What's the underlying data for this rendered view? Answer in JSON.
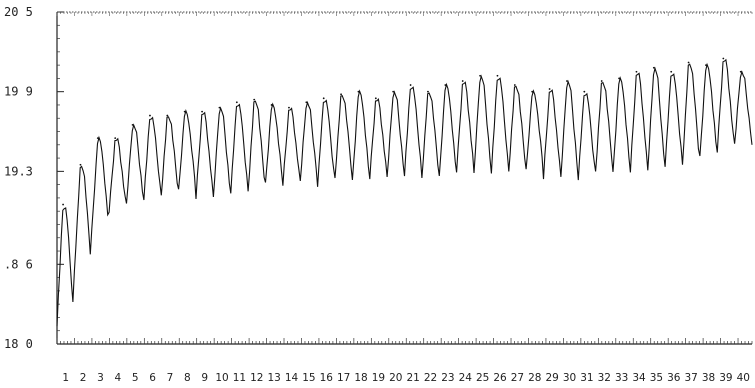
{
  "chart_data": {
    "type": "line",
    "title": "",
    "xlabel": "",
    "ylabel": "",
    "ylim": [
      18.0,
      20.5
    ],
    "xlim": [
      0,
      40
    ],
    "grid": false,
    "y_tick_labels": [
      "20 5",
      "19 9",
      "19.3",
      ".8 6",
      "18 0"
    ],
    "y_tick_values": [
      20.5,
      19.9,
      19.3,
      18.6,
      18.0
    ],
    "x_tick_labels": [
      "1",
      "2",
      "3",
      "4",
      "5",
      "6",
      "7",
      "8",
      "9",
      "10",
      "11",
      "12",
      "13",
      "14",
      "15",
      "16",
      "17",
      "18",
      "19",
      "20",
      "21",
      "22",
      "23",
      "24",
      "25",
      "26",
      "27",
      "28",
      "29",
      "30",
      "31",
      "32",
      "33",
      "34",
      "35",
      "36",
      "37",
      "38",
      "39",
      "40"
    ],
    "x_tick_values": [
      1,
      2,
      3,
      4,
      5,
      6,
      7,
      8,
      9,
      10,
      11,
      12,
      13,
      14,
      15,
      16,
      17,
      18,
      19,
      20,
      21,
      22,
      23,
      24,
      25,
      26,
      27,
      28,
      29,
      30,
      31,
      32,
      33,
      34,
      35,
      36,
      37,
      38,
      39,
      40
    ],
    "series": [
      {
        "color": "#111111",
        "daily_peaks": [
          19.05,
          19.35,
          19.55,
          19.55,
          19.65,
          19.72,
          19.72,
          19.75,
          19.75,
          19.78,
          19.82,
          19.84,
          19.8,
          19.78,
          19.82,
          19.85,
          19.88,
          19.9,
          19.85,
          19.9,
          19.95,
          19.9,
          19.95,
          19.98,
          20.02,
          20.02,
          19.95,
          19.9,
          19.92,
          19.98,
          19.9,
          19.98,
          20.0,
          20.05,
          20.08,
          20.05,
          20.12,
          20.1,
          20.15,
          20.05
        ],
        "daily_troughs": [
          18.15,
          18.55,
          18.85,
          19.0,
          19.05,
          19.1,
          19.12,
          19.15,
          19.1,
          19.1,
          19.15,
          19.15,
          19.2,
          19.2,
          19.22,
          19.2,
          19.25,
          19.22,
          19.25,
          19.25,
          19.28,
          19.25,
          19.25,
          19.3,
          19.28,
          19.3,
          19.3,
          19.3,
          19.25,
          19.25,
          19.25,
          19.3,
          19.28,
          19.3,
          19.3,
          19.35,
          19.35,
          19.4,
          19.45,
          19.5
        ]
      }
    ]
  }
}
